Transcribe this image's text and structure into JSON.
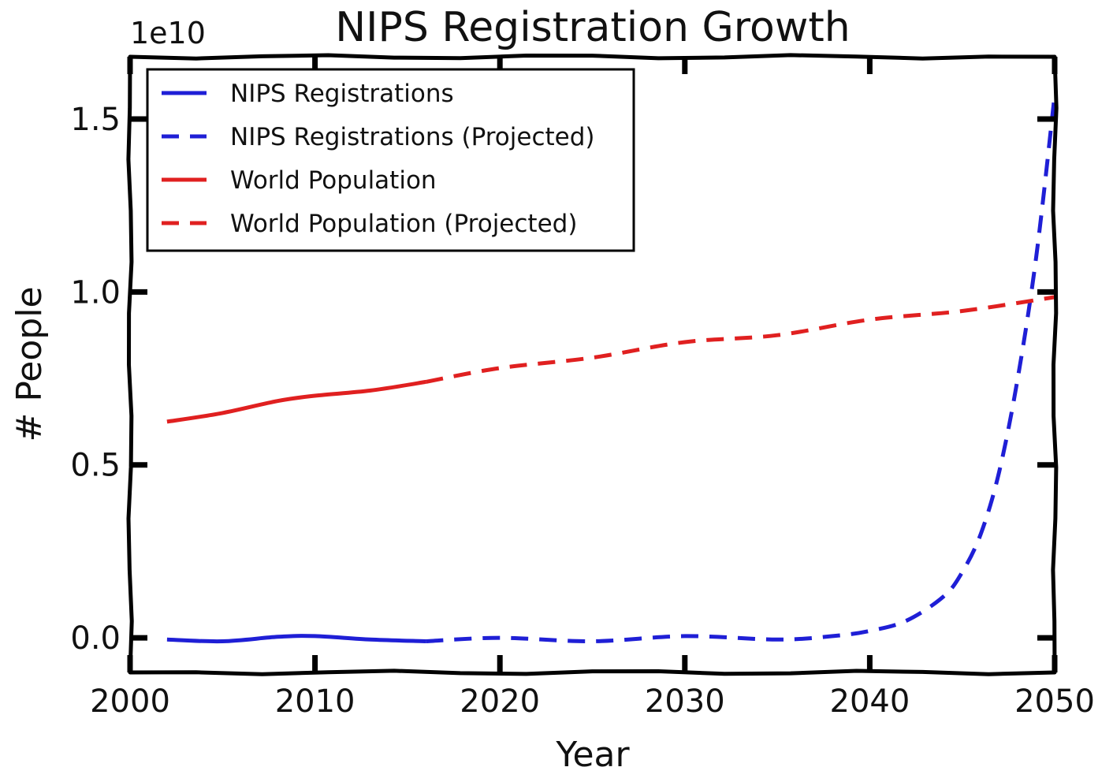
{
  "chart_data": {
    "type": "line",
    "title": "NIPS Registration Growth",
    "xlabel": "Year",
    "ylabel": "# People",
    "y_offset_label": "1e10",
    "xlim": [
      2000,
      2050
    ],
    "ylim": [
      -1000000000.0,
      16800000000.0
    ],
    "xticks": [
      2000,
      2010,
      2020,
      2030,
      2040,
      2050
    ],
    "xtick_labels": [
      "2000",
      "2010",
      "2020",
      "2030",
      "2040",
      "2050"
    ],
    "yticks": [
      0,
      5000000000.0,
      10000000000.0,
      15000000000.0
    ],
    "ytick_labels": [
      "0.0",
      "0.5",
      "1.0",
      "1.5"
    ],
    "legend_position": "top-left",
    "series": [
      {
        "name": "NIPS Registrations",
        "color": "#1f1fd6",
        "style": "solid",
        "x": [
          2002,
          2005,
          2008,
          2010,
          2013,
          2016
        ],
        "y": [
          -50000000.0,
          -100000000.0,
          30000000.0,
          50000000.0,
          -50000000.0,
          -100000000.0
        ]
      },
      {
        "name": "NIPS Registrations (Projected)",
        "color": "#1f1fd6",
        "style": "dashed",
        "x": [
          2016,
          2020,
          2025,
          2030,
          2035,
          2038,
          2040,
          2042,
          2044,
          2045,
          2046,
          2047,
          2048,
          2049,
          2050
        ],
        "y": [
          -100000000.0,
          0.0,
          -100000000.0,
          50000000.0,
          -50000000.0,
          50000000.0,
          200000000.0,
          500000000.0,
          1200000000.0,
          1900000000.0,
          3000000000.0,
          4800000000.0,
          7500000000.0,
          11000000000.0,
          15700000000.0
        ]
      },
      {
        "name": "World Population",
        "color": "#e02020",
        "style": "solid",
        "x": [
          2002,
          2005,
          2008,
          2010,
          2013,
          2016
        ],
        "y": [
          6250000000.0,
          6500000000.0,
          6850000000.0,
          7000000000.0,
          7150000000.0,
          7400000000.0
        ]
      },
      {
        "name": "World Population (Projected)",
        "color": "#e02020",
        "style": "dashed",
        "x": [
          2016,
          2020,
          2025,
          2030,
          2035,
          2040,
          2045,
          2050
        ],
        "y": [
          7400000000.0,
          7800000000.0,
          8100000000.0,
          8550000000.0,
          8750000000.0,
          9200000000.0,
          9450000000.0,
          9850000000.0
        ]
      }
    ]
  }
}
